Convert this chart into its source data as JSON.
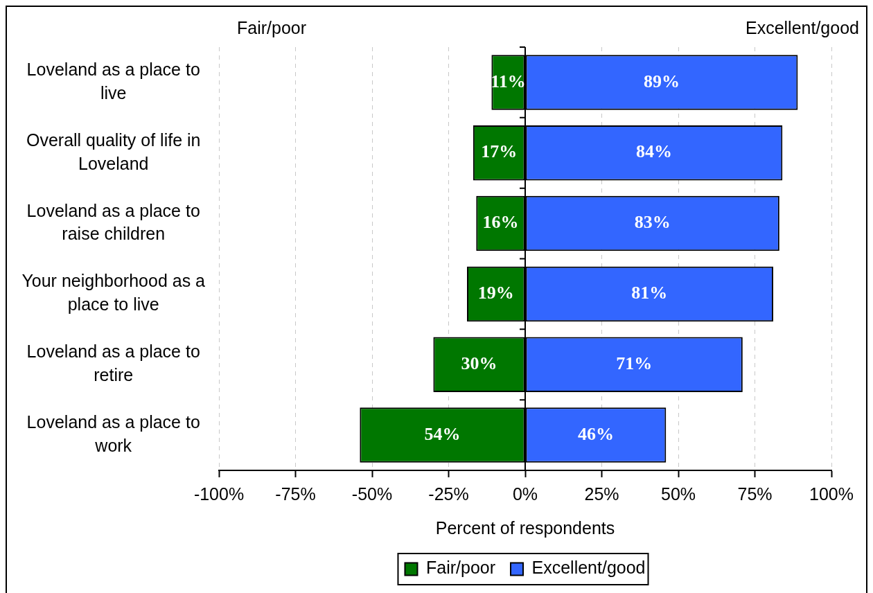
{
  "chart_data": {
    "type": "bar",
    "orientation": "horizontal",
    "categories": [
      "Loveland as a place to live",
      "Overall quality of life in Loveland",
      "Loveland as a place to raise children",
      "Your neighborhood as a place to live",
      "Loveland as a place to retire",
      "Loveland as a place to work"
    ],
    "series": [
      {
        "name": "Fair/poor",
        "color": "#007700",
        "values": [
          11,
          17,
          16,
          19,
          30,
          54
        ],
        "base": [
          -11,
          -17,
          -16,
          -19,
          -30,
          -54
        ],
        "value_labels": [
          "11%",
          "17%",
          "16%",
          "19%",
          "30%",
          "54%"
        ]
      },
      {
        "name": "Excellent/good",
        "color": "#3366ff",
        "values": [
          89,
          84,
          83,
          81,
          71,
          46
        ],
        "value_labels": [
          "89%",
          "84%",
          "83%",
          "81%",
          "71%",
          "46%"
        ]
      }
    ],
    "xlim": [
      -100,
      100
    ],
    "xticks": [
      {
        "value": -100,
        "label": "-100%"
      },
      {
        "value": -75,
        "label": "-75%"
      },
      {
        "value": -50,
        "label": "-50%"
      },
      {
        "value": -25,
        "label": "-25%"
      },
      {
        "value": 0,
        "label": "0%"
      },
      {
        "value": 25,
        "label": "25%"
      },
      {
        "value": 50,
        "label": "50%"
      },
      {
        "value": 75,
        "label": "75%"
      },
      {
        "value": 100,
        "label": "100%"
      }
    ],
    "xlabel": "Percent of respondents",
    "annotations": [
      "Fair/poor",
      "Excellent/good"
    ],
    "grid": "x",
    "legend": "bottom"
  }
}
